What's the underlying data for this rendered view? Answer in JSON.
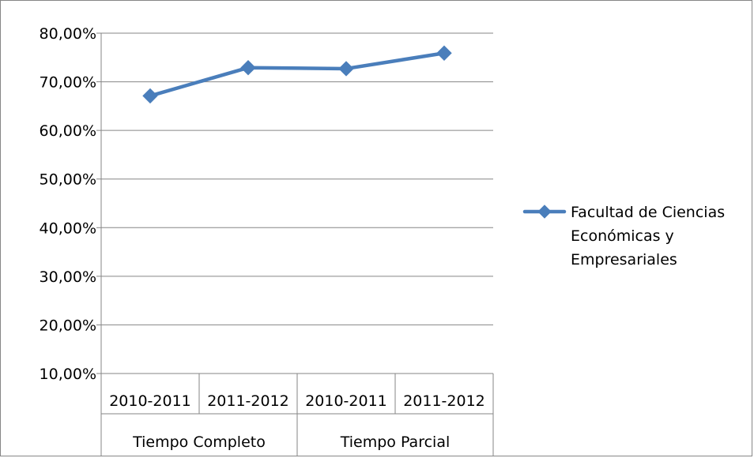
{
  "chart_data": {
    "type": "line",
    "title": "",
    "xlabel": "",
    "ylabel": "",
    "ylim": [
      0.1,
      0.8
    ],
    "yticks": [
      "10,00%",
      "20,00%",
      "30,00%",
      "40,00%",
      "50,00%",
      "60,00%",
      "70,00%",
      "80,00%"
    ],
    "categories": [
      "2010-2011",
      "2011-2012",
      "2010-2011",
      "2011-2012"
    ],
    "category_groups": [
      {
        "label": "Tiempo Completo",
        "span": 2
      },
      {
        "label": "Tiempo Parcial",
        "span": 2
      }
    ],
    "series": [
      {
        "name": "Facultad de Ciencias Económicas y Empresariales",
        "values": [
          0.671,
          0.729,
          0.727,
          0.759
        ],
        "color": "#4A7EBB",
        "marker": "diamond"
      }
    ],
    "legend": {
      "position": "right",
      "lines": [
        "Facultad de Ciencias",
        "Económicas y",
        "Empresariales"
      ]
    },
    "grid": true
  }
}
